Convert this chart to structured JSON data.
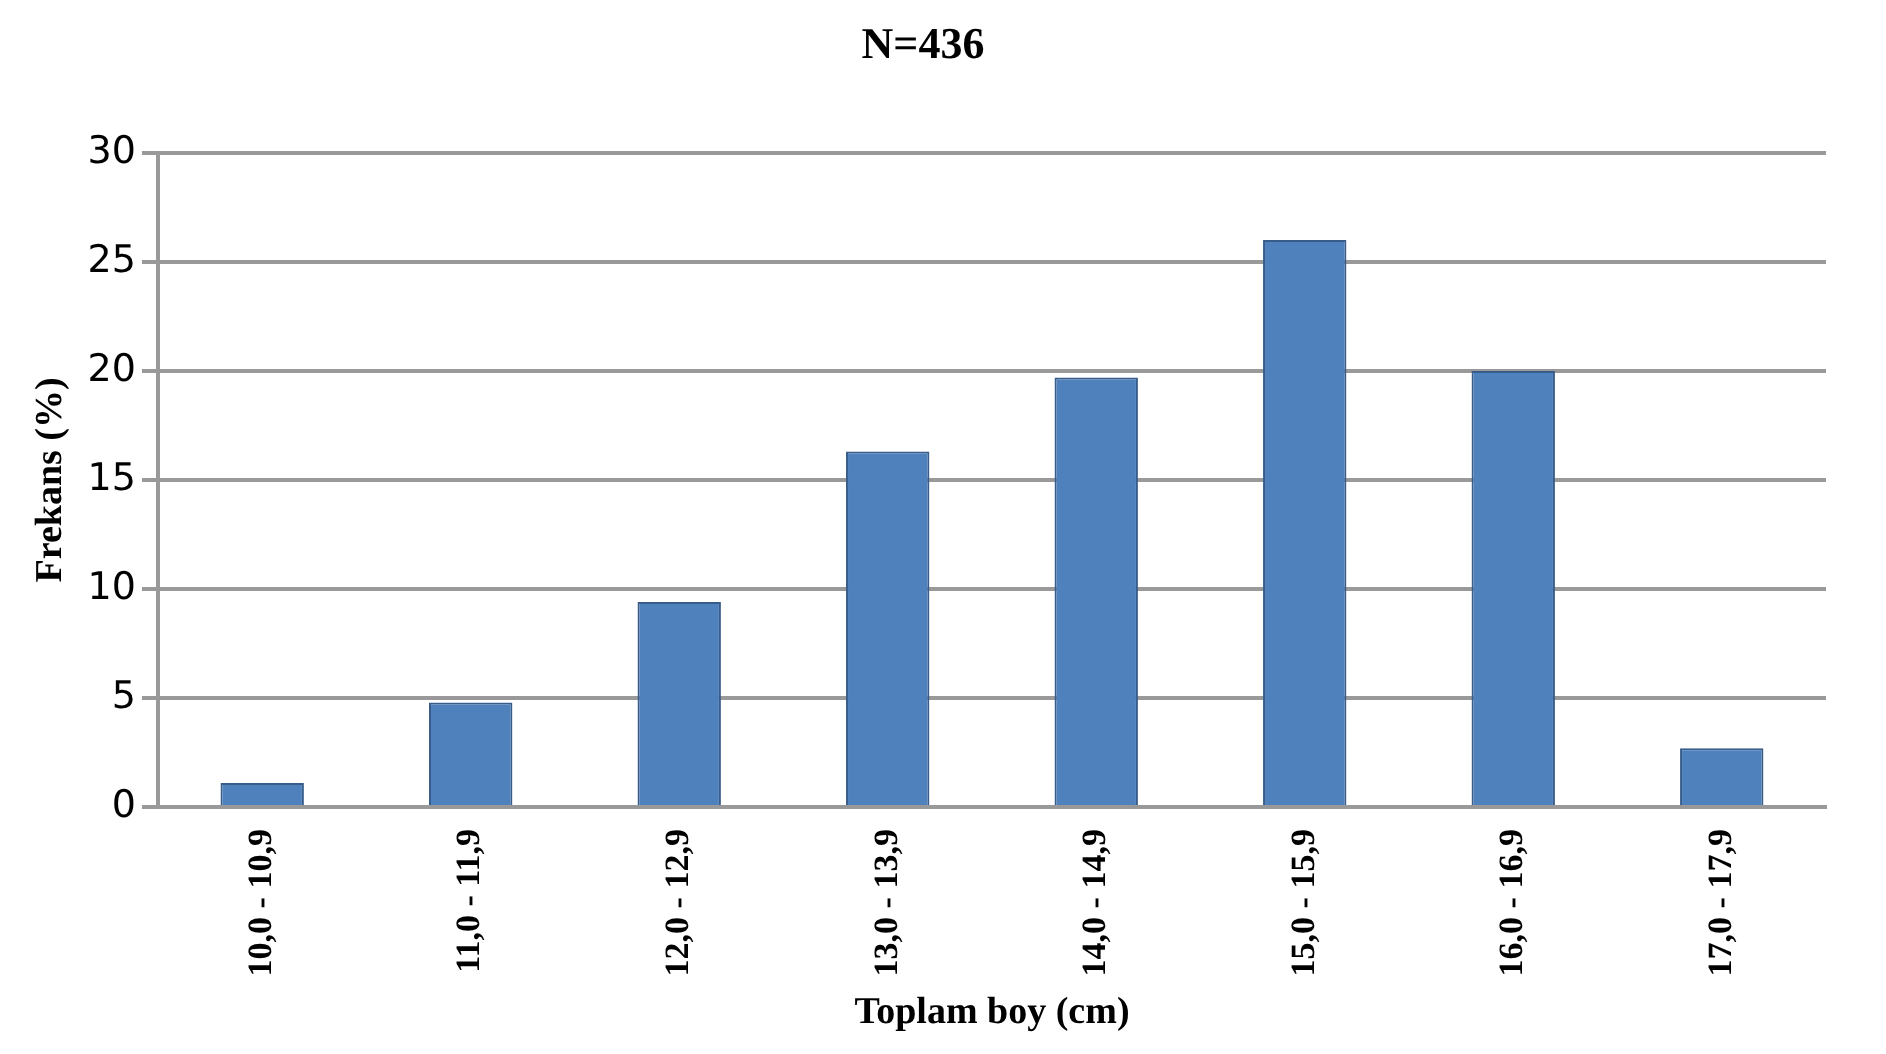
{
  "chart_data": {
    "type": "bar",
    "title": "N=436",
    "xlabel": "Toplam boy (cm)",
    "ylabel": "Frekans (%)",
    "categories": [
      "10,0 - 10,9",
      "11,0 - 11,9",
      "12,0 - 12,9",
      "13,0 - 13,9",
      "14,0 - 14,9",
      "15,0 - 15,9",
      "16,0 - 16,9",
      "17,0 - 17,9"
    ],
    "values": [
      1.1,
      4.8,
      9.4,
      16.3,
      19.7,
      26.0,
      20.0,
      2.7
    ],
    "color": "#4f81bd",
    "ylim": [
      0,
      30
    ],
    "yticks": [
      0,
      5,
      10,
      15,
      20,
      25,
      30
    ],
    "grid": "y"
  }
}
